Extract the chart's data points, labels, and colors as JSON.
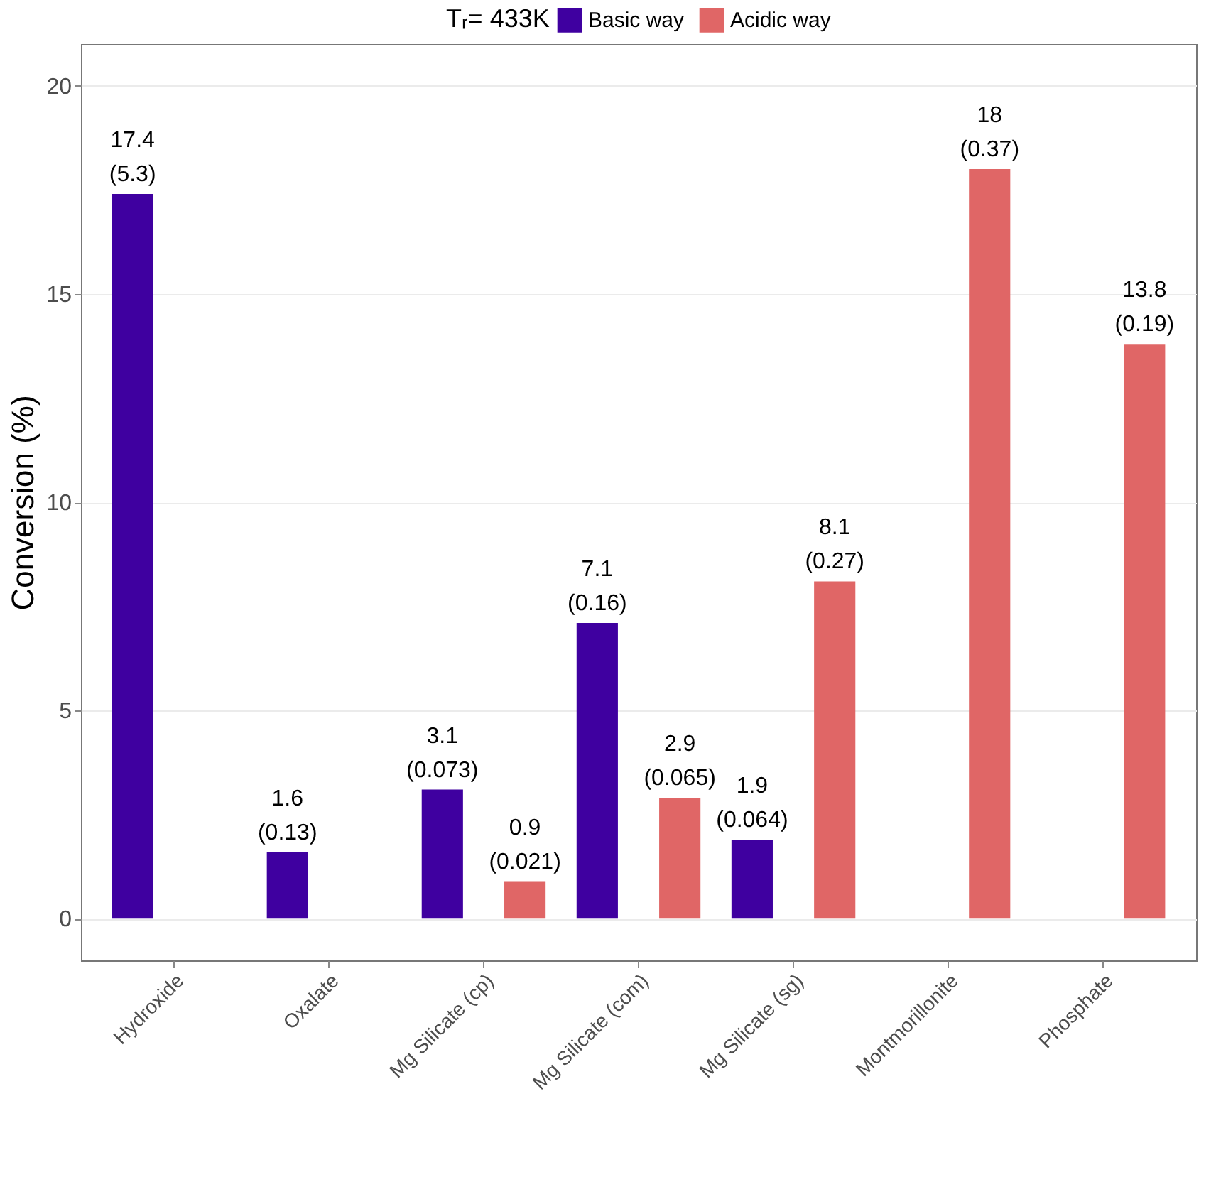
{
  "chart_data": {
    "type": "bar",
    "legend_title": "Tᵣ= 433K",
    "ylabel": "Conversion (%)",
    "categories": [
      "Hydroxide",
      "Oxalate",
      "Mg Silicate (cp)",
      "Mg Silicate (com)",
      "Mg Silicate (sg)",
      "Montmorillonite",
      "Phosphate"
    ],
    "series": [
      {
        "name": "Basic way",
        "color": "#3f00a0",
        "values": [
          17.4,
          1.6,
          3.1,
          7.1,
          1.9,
          null,
          null
        ],
        "value_labels": [
          "17.4\n(5.3)",
          "1.6\n(0.13)",
          "3.1\n(0.073)",
          "7.1\n(0.16)",
          "1.9\n(0.064)",
          null,
          null
        ]
      },
      {
        "name": "Acidic way",
        "color": "#e06666",
        "values": [
          null,
          null,
          0.9,
          2.9,
          8.1,
          18,
          13.8
        ],
        "value_labels": [
          null,
          null,
          "0.9\n(0.021)",
          "2.9\n(0.065)",
          "8.1\n(0.27)",
          "18\n(0.37)",
          "13.8\n(0.19)"
        ]
      }
    ],
    "ylim": [
      -1,
      21
    ],
    "yticks": [
      0,
      5,
      10,
      15,
      20
    ],
    "grid": "y",
    "legend": "top"
  }
}
